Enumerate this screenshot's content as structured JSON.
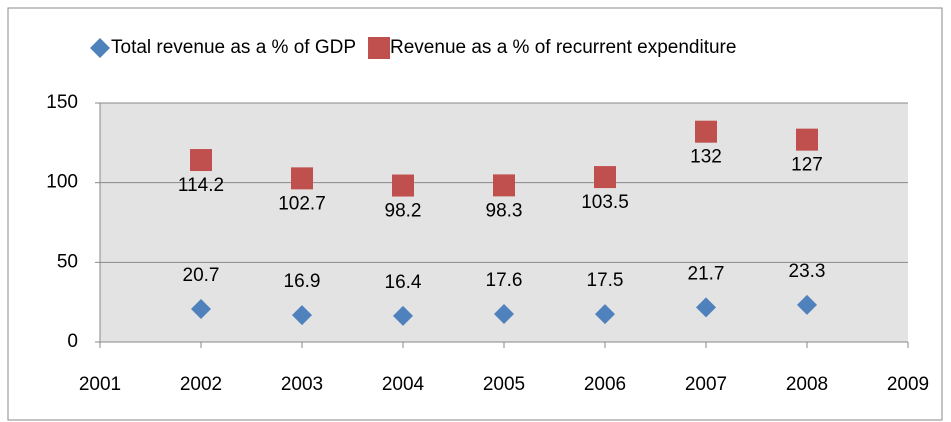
{
  "chart_data": {
    "type": "scatter",
    "x": [
      2002,
      2003,
      2004,
      2005,
      2006,
      2007,
      2008
    ],
    "series": [
      {
        "name": "Total revenue as a % of GDP",
        "color": "#4f81bd",
        "marker": "diamond",
        "values": [
          20.7,
          16.9,
          16.4,
          17.6,
          17.5,
          21.7,
          23.3
        ]
      },
      {
        "name": "Revenue as a % of recurrent expenditure",
        "color": "#c0504d",
        "marker": "square",
        "values": [
          114.2,
          102.7,
          98.2,
          98.3,
          103.5,
          132,
          127
        ]
      }
    ],
    "xlim": [
      2001,
      2009
    ],
    "xticks": [
      2001,
      2002,
      2003,
      2004,
      2005,
      2006,
      2007,
      2008,
      2009
    ],
    "ylim": [
      0,
      150
    ],
    "yticks": [
      0,
      50,
      100,
      150
    ],
    "grid": true,
    "legend": "top"
  }
}
